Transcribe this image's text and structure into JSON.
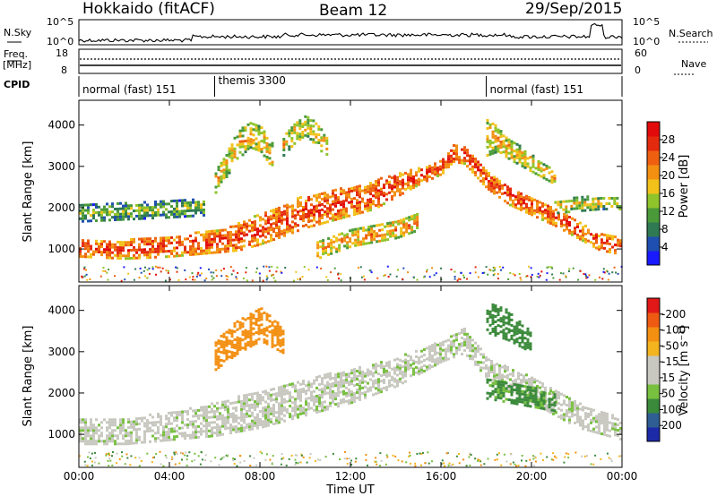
{
  "header": {
    "station": "Hokkaido (fitACF)",
    "beam": "Beam 12",
    "date": "29/Sep/2015"
  },
  "top_panels": {
    "nsky_label": "N.Sky",
    "nsearch_label": "N.Search",
    "nsky_ticks": [
      "10^5",
      "10^0"
    ],
    "nsky_right_ticks": [
      "10^5",
      "10^0"
    ],
    "freq_label_1": "Freq.",
    "freq_label_2": "[MHz]",
    "freq_ticks": [
      "18",
      "8"
    ],
    "nave_ticks": [
      "60",
      "0"
    ],
    "nave_label": "Nave",
    "cpid_label": "CPID",
    "cpid_segments": [
      {
        "label": "normal (fast) 151",
        "start_hour": 0,
        "end_hour": 6
      },
      {
        "label": "themis 3300",
        "start_hour": 6,
        "end_hour": 18
      },
      {
        "label": "normal (fast) 151",
        "start_hour": 18,
        "end_hour": 24
      }
    ]
  },
  "x_ticks": [
    "00:00",
    "04:00",
    "08:00",
    "12:00",
    "16:00",
    "20:00",
    "00:00"
  ],
  "x_label": "Time UT",
  "y_label": "Slant Range [km]",
  "y_ticks": [
    "1000",
    "2000",
    "3000",
    "4000"
  ],
  "power_colorbar": {
    "label": "Power [dB]",
    "ticks": [
      "4",
      "8",
      "12",
      "16",
      "20",
      "24",
      "28"
    ],
    "colors": [
      "#1a1aff",
      "#1f4fb0",
      "#2f7a52",
      "#4a9a3a",
      "#8fc42a",
      "#f2c21a",
      "#f39012",
      "#ee6010",
      "#e42a0e",
      "#e20a0a"
    ]
  },
  "velocity_colorbar": {
    "label": "Velocity [m s⁻¹]",
    "ticks": [
      "200",
      "100",
      "50",
      "15",
      "-15",
      "-50",
      "-100",
      "-200"
    ],
    "colors": [
      "#1c2aa8",
      "#2e5e92",
      "#3b8a3b",
      "#78c040",
      "#c8c8c0",
      "#c8c8c0",
      "#f4b41e",
      "#f39012",
      "#ee5a12",
      "#e01818"
    ]
  },
  "chart_data": [
    {
      "type": "heatmap",
      "name": "Power",
      "xlabel": "Time UT",
      "ylabel": "Slant Range [km]",
      "xlim": [
        0,
        24
      ],
      "ylim": [
        200,
        4600
      ],
      "colorbar_label": "Power [dB]",
      "bands": [
        {
          "x": [
            0,
            2,
            4,
            6,
            7,
            8,
            9,
            10,
            11,
            12,
            13,
            14,
            15,
            16,
            16.5,
            17,
            18,
            19,
            20,
            21,
            22,
            23,
            24
          ],
          "lo": [
            850,
            800,
            850,
            950,
            1000,
            1150,
            1350,
            1550,
            1700,
            1850,
            2000,
            2300,
            2600,
            2850,
            3150,
            3100,
            2500,
            2100,
            1850,
            1600,
            1300,
            1000,
            900
          ],
          "hi": [
            1250,
            1250,
            1350,
            1500,
            1650,
            1900,
            2100,
            2350,
            2450,
            2550,
            2700,
            2850,
            3000,
            3200,
            3550,
            3550,
            2950,
            2550,
            2300,
            2050,
            1750,
            1400,
            1300
          ],
          "power": 27
        },
        {
          "x": [
            0,
            2,
            4,
            5.5
          ],
          "lo": [
            1700,
            1750,
            1800,
            1850
          ],
          "hi": [
            2100,
            2150,
            2200,
            2250
          ],
          "power": 14
        },
        {
          "x": [
            6,
            6.5,
            7,
            7.5,
            8,
            8.5
          ],
          "lo": [
            2400,
            2800,
            3200,
            3500,
            3400,
            3000
          ],
          "hi": [
            2900,
            3400,
            3900,
            4100,
            4000,
            3600
          ],
          "power": 20
        },
        {
          "x": [
            9,
            9.5,
            10,
            10.5,
            11
          ],
          "lo": [
            3300,
            3600,
            3800,
            3500,
            3200
          ],
          "hi": [
            3800,
            4100,
            4300,
            4100,
            3700
          ],
          "power": 19
        },
        {
          "x": [
            10.5,
            11,
            12,
            13,
            14,
            15
          ],
          "lo": [
            800,
            900,
            1100,
            1200,
            1300,
            1500
          ],
          "hi": [
            1200,
            1300,
            1500,
            1600,
            1700,
            1900
          ],
          "power": 22
        },
        {
          "x": [
            18,
            18.5,
            19,
            20,
            21
          ],
          "lo": [
            3300,
            3400,
            3200,
            2900,
            2600
          ],
          "hi": [
            4200,
            4000,
            3700,
            3300,
            2900
          ],
          "power": 20
        },
        {
          "x": [
            21,
            22,
            23,
            24
          ],
          "lo": [
            1900,
            1950,
            2000,
            2000
          ],
          "hi": [
            2200,
            2300,
            2300,
            2250
          ],
          "power": 18
        }
      ]
    },
    {
      "type": "heatmap",
      "name": "Velocity",
      "xlabel": "Time UT",
      "ylabel": "Slant Range [km]",
      "xlim": [
        0,
        24
      ],
      "ylim": [
        200,
        4600
      ],
      "colorbar_label": "Velocity [m s⁻¹]",
      "bands": [
        {
          "x": [
            0,
            2,
            4,
            6,
            8,
            10,
            12,
            14,
            16,
            17,
            18,
            20,
            22,
            24
          ],
          "lo": [
            800,
            800,
            900,
            1000,
            1200,
            1500,
            1800,
            2200,
            2800,
            3000,
            2400,
            1800,
            1200,
            900
          ],
          "hi": [
            1400,
            1400,
            1600,
            1800,
            2100,
            2400,
            2600,
            2900,
            3300,
            3600,
            2900,
            2400,
            1800,
            1400
          ],
          "velocity": 0
        },
        {
          "x": [
            6,
            7,
            8,
            9
          ],
          "lo": [
            2600,
            3000,
            3300,
            3000
          ],
          "hi": [
            3300,
            3800,
            4100,
            3600
          ],
          "velocity": -60
        },
        {
          "x": [
            18,
            19,
            20,
            21
          ],
          "lo": [
            1900,
            1800,
            1700,
            1600
          ],
          "hi": [
            2400,
            2300,
            2200,
            2000
          ],
          "velocity": 40
        },
        {
          "x": [
            18,
            19,
            20
          ],
          "lo": [
            3500,
            3300,
            3000
          ],
          "hi": [
            4300,
            4000,
            3500
          ],
          "velocity": 60
        }
      ]
    }
  ]
}
